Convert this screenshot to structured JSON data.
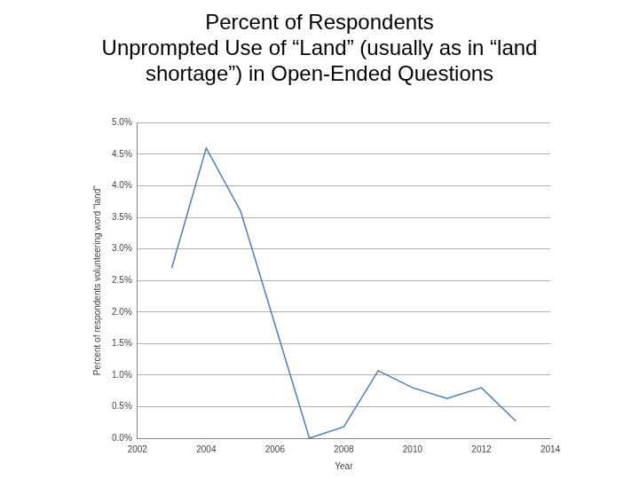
{
  "chart_data": {
    "type": "line",
    "title": "Percent of Respondents\nUnprompted Use of “Land” (usually as in “land\nshortage”) in Open-Ended Questions",
    "x_label": "Year",
    "y_label": "Percent of respondents volunteering word \"land\"",
    "x": [
      2003,
      2004,
      2005,
      2006,
      2007,
      2008,
      2009,
      2010,
      2011,
      2012,
      2013
    ],
    "values": [
      2.7,
      4.6,
      3.6,
      1.8,
      0.0,
      0.18,
      1.07,
      0.8,
      0.63,
      0.8,
      0.27
    ],
    "color": "#4a7ebb",
    "xlim": [
      2002,
      2014
    ],
    "xticks": [
      2002,
      2004,
      2006,
      2008,
      2010,
      2012,
      2014
    ],
    "ylim": [
      0,
      5
    ],
    "yticks": [
      {
        "value": 0,
        "label": "0.0%"
      },
      {
        "value": 0.5,
        "label": "0.5%"
      },
      {
        "value": 1,
        "label": "1.0%"
      },
      {
        "value": 1.5,
        "label": "1.5%"
      },
      {
        "value": 2,
        "label": "2.0%"
      },
      {
        "value": 2.5,
        "label": "2.5%"
      },
      {
        "value": 3,
        "label": "3.0%"
      },
      {
        "value": 3.5,
        "label": "3.5%"
      },
      {
        "value": 4,
        "label": "4.0%"
      },
      {
        "value": 4.5,
        "label": "4.5%"
      },
      {
        "value": 5,
        "label": "5.0%"
      }
    ],
    "grid": true
  }
}
